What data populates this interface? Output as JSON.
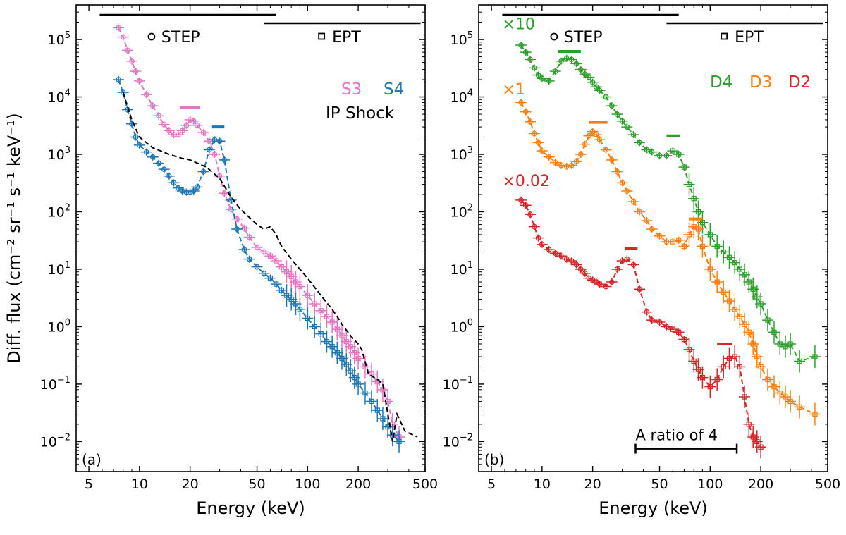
{
  "figure": {
    "ylabel": "Diff. flux (cm⁻² sr⁻¹ s⁻¹ keV⁻¹)",
    "xlabel": "Energy (keV)"
  },
  "colors": {
    "S3": "#e377c2",
    "S4": "#1f77b4",
    "shock": "#000000",
    "D4": "#2ca02c",
    "D3": "#ff7f0e",
    "D2": "#d62728",
    "frame": "#000000"
  },
  "chart_data": [
    {
      "type": "line",
      "panel_label": "(a)",
      "xscale": "log",
      "yscale": "log",
      "xlim": [
        4.2,
        500
      ],
      "ylim": [
        0.003,
        400000
      ],
      "xlabel": "Energy (keV)",
      "ylabel": "Diff. flux (cm⁻² sr⁻¹ s⁻¹ keV⁻¹)",
      "xticks": [
        5,
        10,
        20,
        50,
        100,
        200,
        500
      ],
      "xtick_labels": [
        "5",
        "10",
        "20",
        "50",
        "100",
        "200",
        "500"
      ],
      "yticks": [
        0.01,
        0.1,
        1,
        10,
        100,
        1000,
        10000,
        100000
      ],
      "ytick_labels": [
        {
          "base": "10",
          "exp": "−2"
        },
        {
          "base": "10",
          "exp": "−1"
        },
        {
          "base": "10",
          "exp": "0"
        },
        {
          "base": "10",
          "exp": "1"
        },
        {
          "base": "10",
          "exp": "2"
        },
        {
          "base": "10",
          "exp": "3"
        },
        {
          "base": "10",
          "exp": "4"
        },
        {
          "base": "10",
          "exp": "5"
        }
      ],
      "instrument_ranges": [
        {
          "name": "STEP",
          "marker": "circle",
          "range": [
            5.8,
            65
          ]
        },
        {
          "name": "EPT",
          "marker": "square",
          "range": [
            55,
            470
          ]
        }
      ],
      "legend": [
        {
          "text": "S3",
          "color_key": "S3"
        },
        {
          "text": "S4",
          "color_key": "S4"
        },
        {
          "text": "IP Shock",
          "color_key": "shock"
        }
      ],
      "annotations": [],
      "peak_bars": [
        {
          "x": [
            17.5,
            23
          ],
          "y": 6500,
          "color_key": "S3"
        },
        {
          "x": [
            27,
            32
          ],
          "y": 3000,
          "color_key": "S4"
        }
      ],
      "series": [
        {
          "name": "S3",
          "color_key": "S3",
          "style": "dashed-markers",
          "x": [
            7.5,
            8,
            8.5,
            9,
            9.5,
            10,
            11,
            12,
            13,
            14,
            15,
            16,
            17,
            18,
            19,
            20,
            21,
            22,
            24,
            26,
            28,
            30,
            32,
            35,
            38,
            42,
            45,
            50,
            55,
            60,
            65,
            70,
            75,
            80,
            85,
            90,
            100,
            110,
            120,
            130,
            140,
            150,
            160,
            170,
            180,
            190,
            200,
            220,
            240,
            260,
            280,
            300,
            320,
            350
          ],
          "y": [
            160000,
            110000,
            65000,
            42000,
            28000,
            19000,
            11000,
            7000,
            4700,
            3300,
            2600,
            2200,
            2200,
            2600,
            3200,
            4000,
            3800,
            3200,
            2400,
            1700,
            1000,
            420,
            210,
            110,
            75,
            52,
            36,
            24,
            20,
            17,
            14,
            11,
            9,
            7.5,
            6,
            5,
            3.5,
            2.5,
            1.9,
            1.5,
            1.2,
            0.9,
            0.7,
            0.55,
            0.45,
            0.35,
            0.28,
            0.2,
            0.15,
            0.11,
            0.08,
            0.05,
            0.02,
            0.012
          ]
        },
        {
          "name": "S4",
          "color_key": "S4",
          "style": "dashed-markers",
          "x": [
            7.5,
            8,
            8.5,
            9,
            9.5,
            10,
            11,
            12,
            13,
            14,
            15,
            16,
            17,
            18,
            19,
            20,
            21,
            22,
            24,
            26,
            28,
            30,
            32,
            35,
            38,
            42,
            45,
            50,
            55,
            60,
            65,
            70,
            75,
            80,
            85,
            90,
            100,
            110,
            120,
            130,
            140,
            150,
            160,
            170,
            180,
            190,
            200,
            220,
            240,
            260,
            280,
            300,
            320,
            350
          ],
          "y": [
            20000,
            12000,
            6000,
            3400,
            2000,
            1450,
            1100,
            900,
            700,
            550,
            420,
            320,
            260,
            230,
            220,
            220,
            230,
            270,
            500,
            1200,
            1800,
            1700,
            800,
            160,
            50,
            22,
            15,
            11,
            8.5,
            7,
            5.5,
            4.3,
            3.5,
            3,
            2.5,
            2,
            1.4,
            1,
            0.75,
            0.55,
            0.45,
            0.35,
            0.28,
            0.22,
            0.17,
            0.13,
            0.1,
            0.07,
            0.05,
            0.035,
            0.025,
            0.018,
            0.013,
            0.01
          ]
        },
        {
          "name": "IP Shock",
          "color_key": "shock",
          "style": "dashed",
          "x": [
            8,
            9,
            10,
            12,
            15,
            18,
            20,
            25,
            30,
            35,
            40,
            45,
            50,
            55,
            60,
            65,
            70,
            80,
            90,
            100,
            120,
            140,
            150,
            160,
            180,
            200,
            210,
            230,
            260,
            280,
            300,
            320,
            340,
            380,
            450
          ],
          "y": [
            12000,
            4000,
            2000,
            1300,
            1000,
            850,
            800,
            600,
            380,
            180,
            110,
            80,
            60,
            50,
            55,
            40,
            25,
            15,
            10,
            7,
            3.5,
            2,
            1.5,
            1.1,
            0.7,
            0.5,
            0.4,
            0.15,
            0.12,
            0.1,
            0.03,
            0.01,
            0.03,
            0.015,
            0.012
          ]
        }
      ]
    },
    {
      "type": "line",
      "panel_label": "(b)",
      "xscale": "log",
      "yscale": "log",
      "xlim": [
        4.2,
        500
      ],
      "ylim": [
        0.003,
        400000
      ],
      "xlabel": "Energy (keV)",
      "xticks": [
        5,
        10,
        20,
        50,
        100,
        200,
        500
      ],
      "xtick_labels": [
        "5",
        "10",
        "20",
        "50",
        "100",
        "200",
        "500"
      ],
      "yticks": [
        0.01,
        0.1,
        1,
        10,
        100,
        1000,
        10000,
        100000
      ],
      "ytick_labels": [
        {
          "base": "10",
          "exp": "−2"
        },
        {
          "base": "10",
          "exp": "−1"
        },
        {
          "base": "10",
          "exp": "0"
        },
        {
          "base": "10",
          "exp": "1"
        },
        {
          "base": "10",
          "exp": "2"
        },
        {
          "base": "10",
          "exp": "3"
        },
        {
          "base": "10",
          "exp": "4"
        },
        {
          "base": "10",
          "exp": "5"
        }
      ],
      "instrument_ranges": [
        {
          "name": "STEP",
          "marker": "circle",
          "range": [
            5.8,
            65
          ]
        },
        {
          "name": "EPT",
          "marker": "square",
          "range": [
            55,
            470
          ]
        }
      ],
      "legend": [
        {
          "text": "D4",
          "color_key": "D4"
        },
        {
          "text": "D3",
          "color_key": "D3"
        },
        {
          "text": "D2",
          "color_key": "D2"
        }
      ],
      "annotations": [
        {
          "text": "×10",
          "color_key": "D4",
          "x": 5.8,
          "y": 150000
        },
        {
          "text": "×1",
          "color_key": "D3",
          "x": 5.8,
          "y": 11000
        },
        {
          "text": "×0.02",
          "color_key": "D2",
          "x": 5.8,
          "y": 280
        }
      ],
      "ratio_bar": {
        "text": "A ratio of 4",
        "x": [
          36,
          144
        ],
        "y": 0.0075
      },
      "peak_bars": [
        {
          "x": [
            12.5,
            17
          ],
          "y": 62000,
          "color_key": "D4"
        },
        {
          "x": [
            19,
            24.5
          ],
          "y": 3600,
          "color_key": "D3"
        },
        {
          "x": [
            55,
            66
          ],
          "y": 2100,
          "color_key": "D4"
        },
        {
          "x": [
            31,
            37
          ],
          "y": 23,
          "color_key": "D2"
        },
        {
          "x": [
            75,
            90
          ],
          "y": 75,
          "color_key": "D3"
        },
        {
          "x": [
            110,
            135
          ],
          "y": 0.5,
          "color_key": "D2"
        }
      ],
      "series": [
        {
          "name": "D4",
          "color_key": "D4",
          "style": "dashed-markers",
          "x": [
            7.5,
            8,
            8.5,
            9,
            9.5,
            10,
            11,
            12,
            13,
            14,
            15,
            16,
            17,
            18,
            19,
            20,
            21,
            22,
            24,
            26,
            28,
            30,
            32,
            35,
            38,
            42,
            45,
            50,
            55,
            60,
            65,
            70,
            75,
            80,
            85,
            90,
            100,
            110,
            120,
            130,
            140,
            150,
            160,
            170,
            180,
            190,
            200,
            220,
            240,
            260,
            280,
            300,
            340,
            420
          ],
          "y": [
            80000,
            60000,
            45000,
            32000,
            24000,
            21000,
            19000,
            28000,
            42000,
            47000,
            45000,
            38000,
            30000,
            25000,
            22000,
            18000,
            15000,
            13000,
            10000,
            7000,
            5000,
            3800,
            3000,
            2200,
            1600,
            1200,
            1100,
            950,
            950,
            1150,
            1000,
            600,
            300,
            170,
            100,
            65,
            40,
            25,
            20,
            16,
            13,
            10,
            8,
            6,
            4.5,
            3.3,
            2.5,
            1.3,
            0.8,
            0.5,
            0.45,
            0.5,
            0.25,
            0.3
          ]
        },
        {
          "name": "D3",
          "color_key": "D3",
          "style": "dashed-markers",
          "x": [
            7.5,
            8,
            8.5,
            9,
            9.5,
            10,
            11,
            12,
            13,
            14,
            15,
            16,
            17,
            18,
            19,
            20,
            21,
            22,
            24,
            26,
            28,
            30,
            32,
            35,
            38,
            42,
            45,
            50,
            55,
            60,
            65,
            70,
            75,
            80,
            85,
            90,
            100,
            110,
            120,
            130,
            140,
            150,
            160,
            170,
            180,
            190,
            200,
            220,
            240,
            260,
            280,
            300,
            340,
            420
          ],
          "y": [
            8000,
            5500,
            3700,
            2300,
            1600,
            1150,
            900,
            720,
            640,
            620,
            640,
            750,
            1000,
            1500,
            2100,
            2500,
            2200,
            1800,
            1200,
            800,
            500,
            320,
            230,
            150,
            100,
            70,
            50,
            38,
            30,
            30,
            32,
            25,
            40,
            55,
            50,
            25,
            10,
            6,
            4,
            2.8,
            2,
            1.5,
            1.1,
            0.8,
            0.5,
            0.3,
            0.2,
            0.12,
            0.09,
            0.07,
            0.06,
            0.05,
            0.04,
            0.03
          ]
        },
        {
          "name": "D2",
          "color_key": "D2",
          "style": "dashed-markers",
          "x": [
            7.5,
            8,
            8.5,
            9,
            9.5,
            10,
            11,
            12,
            13,
            14,
            15,
            16,
            17,
            18,
            19,
            20,
            21,
            22,
            24,
            26,
            28,
            30,
            32,
            35,
            38,
            42,
            45,
            50,
            55,
            60,
            65,
            70,
            75,
            80,
            85,
            90,
            100,
            110,
            120,
            130,
            140,
            150,
            160,
            170,
            180,
            190,
            200
          ],
          "y": [
            160,
            130,
            90,
            55,
            35,
            27,
            22,
            19,
            17,
            15,
            14,
            12,
            10,
            8.5,
            7,
            6.5,
            6,
            5.5,
            5,
            6,
            10,
            14,
            15,
            12,
            4.5,
            1.8,
            1.3,
            1.2,
            1,
            0.9,
            0.8,
            0.6,
            0.4,
            0.25,
            0.18,
            0.13,
            0.09,
            0.12,
            0.2,
            0.28,
            0.3,
            0.2,
            0.06,
            0.02,
            0.012,
            0.01,
            0.008
          ]
        }
      ]
    }
  ]
}
